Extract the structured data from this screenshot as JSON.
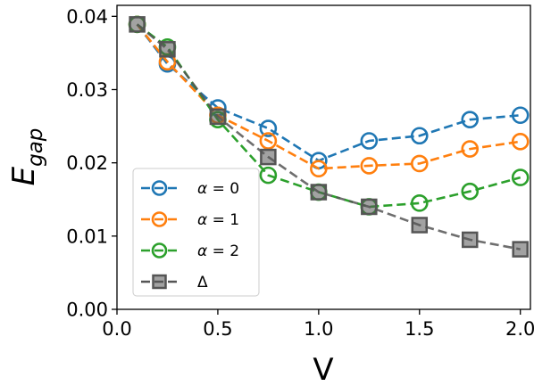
{
  "chart_data": {
    "type": "line",
    "xlabel": "V",
    "ylabel": {
      "base": "E",
      "sub": "gap"
    },
    "xlim": [
      0.0,
      2.05
    ],
    "ylim": [
      0.0,
      0.0415
    ],
    "xticks": [
      0.0,
      0.5,
      1.0,
      1.5,
      2.0
    ],
    "xtick_labels": [
      "0.0",
      "0.5",
      "1.0",
      "1.5",
      "2.0"
    ],
    "yticks": [
      0.0,
      0.01,
      0.02,
      0.03,
      0.04
    ],
    "ytick_labels": [
      "0.00",
      "0.01",
      "0.02",
      "0.03",
      "0.04"
    ],
    "grid": false,
    "legend_position": "lower-left",
    "series": [
      {
        "name": "α = 0",
        "legend_symbol": "α",
        "legend_value": "0",
        "color": "#1f77b4",
        "marker": "circle",
        "x": [
          0.1,
          0.25,
          0.5,
          0.75,
          1.0,
          1.25,
          1.5,
          1.75,
          2.0
        ],
        "y": [
          0.0389,
          0.0335,
          0.0275,
          0.0247,
          0.0203,
          0.023,
          0.0237,
          0.0259,
          0.0265
        ]
      },
      {
        "name": "α = 1",
        "legend_symbol": "α",
        "legend_value": "1",
        "color": "#ff7f0e",
        "marker": "circle",
        "x": [
          0.1,
          0.25,
          0.5,
          0.75,
          1.0,
          1.25,
          1.5,
          1.75,
          2.0
        ],
        "y": [
          0.0389,
          0.0338,
          0.0265,
          0.023,
          0.0192,
          0.0196,
          0.0199,
          0.0219,
          0.0229
        ]
      },
      {
        "name": "α = 2",
        "legend_symbol": "α",
        "legend_value": "2",
        "color": "#2ca02c",
        "marker": "circle",
        "x": [
          0.1,
          0.25,
          0.5,
          0.75,
          1.0,
          1.25,
          1.5,
          1.75,
          2.0
        ],
        "y": [
          0.0389,
          0.0358,
          0.0259,
          0.0183,
          0.016,
          0.014,
          0.0145,
          0.0161,
          0.018
        ]
      },
      {
        "name": "Δ",
        "legend_symbol": "Δ",
        "legend_value": "",
        "color": "#555555",
        "marker": "square",
        "x": [
          0.1,
          0.25,
          0.5,
          0.75,
          1.0,
          1.25,
          1.5,
          1.75,
          2.0
        ],
        "y": [
          0.0389,
          0.0355,
          0.0263,
          0.0208,
          0.016,
          0.014,
          0.0115,
          0.0095,
          0.0082
        ]
      }
    ]
  }
}
